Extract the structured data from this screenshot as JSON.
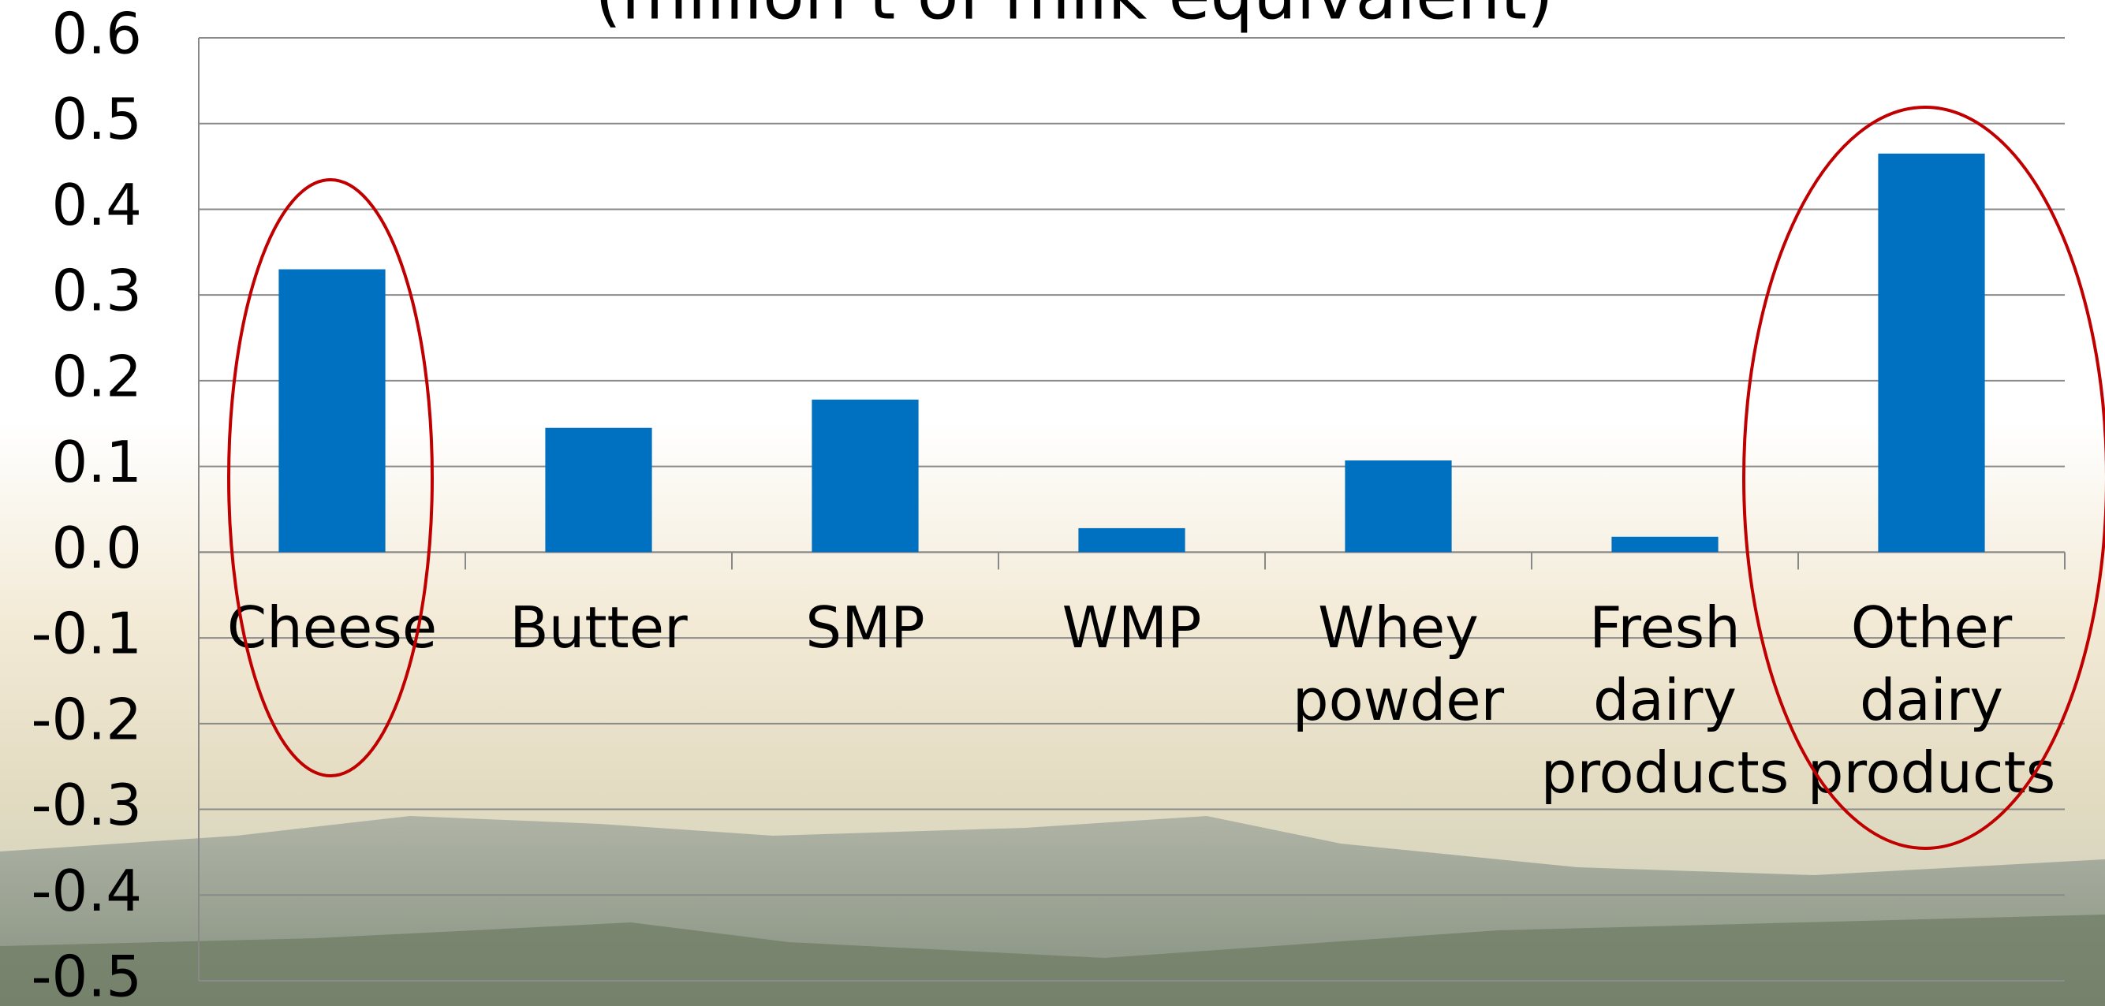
{
  "chart_data": {
    "type": "bar",
    "title": "(million t of milk equivalent)",
    "categories": [
      "Cheese",
      "Butter",
      "SMP",
      "WMP",
      "Whey powder",
      "Fresh dairy products",
      "Other dairy products"
    ],
    "values": [
      0.33,
      0.145,
      0.178,
      0.028,
      0.107,
      0.018,
      0.465
    ],
    "color": "#0070c0",
    "ylim": [
      -0.5,
      0.6
    ],
    "yticks": [
      0.6,
      0.5,
      0.4,
      0.3,
      0.2,
      0.1,
      {
        "value": 0,
        "label": "0.0"
      },
      -0.1,
      -0.2,
      -0.3,
      -0.4,
      -0.5
    ],
    "grid": true
  }
}
